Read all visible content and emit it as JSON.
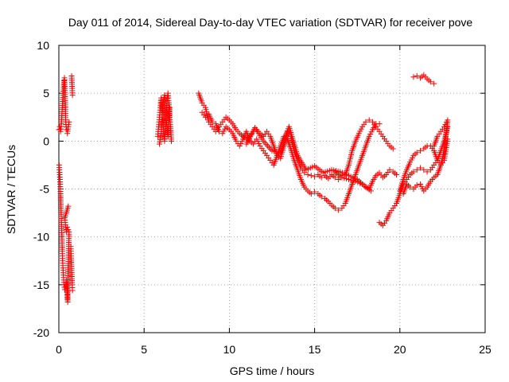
{
  "chart_data": {
    "type": "scatter",
    "title": "Day 011 of 2014, Sidereal Day-to-day VTEC variation (SDTVAR) for receiver pove",
    "xlabel": "GPS time / hours",
    "ylabel": "SDTVAR / TECUs",
    "xlim": [
      0,
      25
    ],
    "ylim": [
      -20,
      10
    ],
    "xticks": [
      0,
      5,
      10,
      15,
      20,
      25
    ],
    "yticks": [
      -20,
      -15,
      -10,
      -5,
      0,
      5,
      10
    ],
    "grid": true,
    "marker": "+",
    "color": "#ff0000",
    "series": [
      {
        "name": "SDTVAR",
        "segments": [
          [
            [
              0.0,
              1.2
            ],
            [
              0.05,
              1.5
            ],
            [
              0.1,
              1.0
            ],
            [
              0.15,
              1.8
            ],
            [
              0.2,
              3.5
            ],
            [
              0.25,
              5.0
            ],
            [
              0.3,
              6.3
            ],
            [
              0.33,
              6.6
            ],
            [
              0.35,
              5.5
            ],
            [
              0.38,
              4.0
            ],
            [
              0.4,
              2.0
            ],
            [
              0.45,
              1.2
            ],
            [
              0.5,
              0.8
            ],
            [
              0.55,
              1.5
            ],
            [
              0.6,
              2.0
            ]
          ],
          [
            [
              0.02,
              -2.5
            ],
            [
              0.05,
              -3.5
            ],
            [
              0.08,
              -4.5
            ],
            [
              0.1,
              -5.5
            ],
            [
              0.12,
              -7.0
            ],
            [
              0.15,
              -8.5
            ],
            [
              0.18,
              -10.0
            ],
            [
              0.2,
              -11.5
            ],
            [
              0.22,
              -12.5
            ],
            [
              0.25,
              -13.5
            ],
            [
              0.28,
              -14.5
            ],
            [
              0.3,
              -15.0
            ],
            [
              0.35,
              -15.5
            ],
            [
              0.4,
              -15.0
            ],
            [
              0.45,
              -14.5
            ],
            [
              0.5,
              -16.5
            ],
            [
              0.52,
              -16.8
            ],
            [
              0.55,
              -13.0
            ],
            [
              0.58,
              -11.0
            ],
            [
              0.6,
              -9.5
            ],
            [
              0.5,
              -9.0
            ],
            [
              0.45,
              -9.5
            ],
            [
              0.4,
              -9.0
            ],
            [
              0.35,
              -8.0
            ],
            [
              0.55,
              -6.8
            ]
          ],
          [
            [
              0.75,
              6.8
            ],
            [
              0.78,
              5.5
            ],
            [
              0.8,
              4.8
            ]
          ],
          [
            [
              0.7,
              -11.0
            ],
            [
              0.72,
              -12.0
            ],
            [
              0.75,
              -13.5
            ],
            [
              0.78,
              -15.0
            ],
            [
              0.8,
              -15.6
            ]
          ],
          [
            [
              5.8,
              0.5
            ],
            [
              5.85,
              1.5
            ],
            [
              5.9,
              2.5
            ],
            [
              5.95,
              3.5
            ],
            [
              6.0,
              4.5
            ],
            [
              6.05,
              3.0
            ],
            [
              6.1,
              2.0
            ],
            [
              6.15,
              1.0
            ],
            [
              6.2,
              0.0
            ],
            [
              6.25,
              1.5
            ],
            [
              6.3,
              3.0
            ],
            [
              6.35,
              4.2
            ],
            [
              6.4,
              5.0
            ],
            [
              6.45,
              4.0
            ],
            [
              6.5,
              2.5
            ],
            [
              6.55,
              1.5
            ],
            [
              6.6,
              0.0
            ]
          ],
          [
            [
              5.9,
              -0.3
            ],
            [
              6.0,
              0.8
            ],
            [
              6.1,
              3.8
            ],
            [
              6.2,
              4.8
            ],
            [
              6.3,
              2.2
            ],
            [
              6.4,
              0.5
            ],
            [
              6.5,
              3.5
            ]
          ],
          [
            [
              8.2,
              5.0
            ],
            [
              8.4,
              4.0
            ],
            [
              8.6,
              3.5
            ],
            [
              8.8,
              2.0
            ],
            [
              9.0,
              1.5
            ],
            [
              9.2,
              1.0
            ],
            [
              9.4,
              1.5
            ],
            [
              9.6,
              2.0
            ],
            [
              9.8,
              2.5
            ],
            [
              10.0,
              2.2
            ],
            [
              10.2,
              1.8
            ],
            [
              10.4,
              1.2
            ],
            [
              10.6,
              0.8
            ],
            [
              10.8,
              0.5
            ],
            [
              11.0,
              0.2
            ],
            [
              11.2,
              0.5
            ],
            [
              11.4,
              1.0
            ],
            [
              11.6,
              1.2
            ],
            [
              11.8,
              0.8
            ],
            [
              12.0,
              0.5
            ],
            [
              12.2,
              1.0
            ],
            [
              12.4,
              0.5
            ],
            [
              12.6,
              -0.5
            ],
            [
              12.8,
              -1.5
            ],
            [
              13.0,
              -1.8
            ],
            [
              13.2,
              -0.5
            ],
            [
              13.4,
              1.0
            ],
            [
              13.6,
              0.5
            ],
            [
              13.8,
              -1.0
            ],
            [
              14.0,
              -2.0
            ],
            [
              14.2,
              -2.8
            ],
            [
              14.4,
              -3.3
            ],
            [
              14.6,
              -3.5
            ],
            [
              14.8,
              -3.6
            ],
            [
              15.0,
              -3.7
            ],
            [
              15.2,
              -3.5
            ],
            [
              15.4,
              -3.8
            ],
            [
              15.6,
              -3.6
            ],
            [
              15.8,
              -3.9
            ],
            [
              16.0,
              -3.5
            ],
            [
              16.2,
              -3.8
            ],
            [
              16.4,
              -4.0
            ],
            [
              16.6,
              -3.6
            ],
            [
              16.8,
              -3.5
            ],
            [
              17.0,
              -2.5
            ],
            [
              17.2,
              -1.0
            ],
            [
              17.4,
              0.0
            ],
            [
              17.6,
              0.8
            ],
            [
              17.8,
              1.5
            ],
            [
              18.0,
              2.0
            ],
            [
              18.2,
              2.2
            ],
            [
              18.4,
              2.0
            ],
            [
              18.6,
              1.5
            ],
            [
              18.8,
              1.0
            ],
            [
              19.0,
              0.5
            ],
            [
              19.2,
              0.0
            ],
            [
              19.4,
              -0.5
            ],
            [
              19.6,
              -0.8
            ]
          ],
          [
            [
              8.4,
              3.0
            ],
            [
              8.6,
              2.5
            ],
            [
              8.8,
              2.8
            ],
            [
              9.0,
              2.0
            ],
            [
              9.2,
              1.8
            ],
            [
              9.4,
              1.0
            ],
            [
              9.6,
              0.8
            ],
            [
              9.8,
              1.5
            ],
            [
              10.0,
              1.2
            ],
            [
              10.2,
              0.8
            ],
            [
              10.4,
              0.0
            ],
            [
              10.6,
              -0.5
            ],
            [
              10.8,
              0.2
            ],
            [
              11.0,
              1.0
            ],
            [
              11.2,
              0.0
            ],
            [
              11.4,
              -0.3
            ],
            [
              11.6,
              0.2
            ],
            [
              11.8,
              -0.5
            ],
            [
              12.0,
              -1.0
            ],
            [
              12.2,
              -1.5
            ],
            [
              12.4,
              -2.0
            ],
            [
              12.6,
              -2.5
            ],
            [
              12.8,
              -1.5
            ],
            [
              13.0,
              -0.5
            ],
            [
              13.2,
              0.5
            ],
            [
              13.4,
              0.2
            ],
            [
              13.6,
              -0.8
            ],
            [
              13.8,
              -2.0
            ],
            [
              14.0,
              -3.0
            ],
            [
              14.2,
              -4.0
            ],
            [
              14.4,
              -4.8
            ],
            [
              14.6,
              -5.2
            ],
            [
              14.8,
              -5.5
            ],
            [
              15.0,
              -5.3
            ],
            [
              15.2,
              -5.5
            ],
            [
              15.4,
              -5.8
            ],
            [
              15.6,
              -6.0
            ],
            [
              15.8,
              -6.3
            ],
            [
              16.0,
              -6.7
            ],
            [
              16.2,
              -7.0
            ],
            [
              16.4,
              -7.2
            ],
            [
              16.6,
              -7.0
            ],
            [
              16.8,
              -6.5
            ],
            [
              17.0,
              -5.5
            ],
            [
              17.2,
              -4.5
            ],
            [
              17.4,
              -3.5
            ],
            [
              17.6,
              -2.5
            ],
            [
              17.8,
              -1.5
            ],
            [
              18.0,
              -0.5
            ],
            [
              18.2,
              0.5
            ],
            [
              18.4,
              1.2
            ],
            [
              18.6,
              1.8
            ],
            [
              18.8,
              1.8
            ]
          ],
          [
            [
              11.0,
              -0.3
            ],
            [
              11.5,
              1.4
            ],
            [
              12.0,
              0.0
            ],
            [
              12.5,
              -1.0
            ],
            [
              13.0,
              -1.2
            ],
            [
              13.5,
              1.5
            ],
            [
              14.0,
              -1.5
            ],
            [
              14.5,
              -3.0
            ],
            [
              15.0,
              -2.6
            ],
            [
              15.5,
              -3.3
            ],
            [
              16.0,
              -3.0
            ],
            [
              16.5,
              -3.2
            ],
            [
              17.0,
              -3.6
            ],
            [
              17.5,
              -4.0
            ],
            [
              18.0,
              -4.8
            ],
            [
              18.3,
              -5.2
            ]
          ],
          [
            [
              16.2,
              -3.2
            ],
            [
              16.6,
              -3.8
            ],
            [
              17.0,
              -4.0
            ],
            [
              17.4,
              -4.2
            ],
            [
              17.8,
              -4.5
            ],
            [
              18.2,
              -5.0
            ],
            [
              18.4,
              -4.2
            ],
            [
              18.6,
              -3.6
            ],
            [
              18.8,
              -3.3
            ],
            [
              19.0,
              -3.8
            ],
            [
              19.2,
              -3.5
            ],
            [
              19.4,
              -3.0
            ],
            [
              19.6,
              -3.2
            ],
            [
              19.8,
              -3.5
            ]
          ],
          [
            [
              18.8,
              -8.5
            ],
            [
              19.0,
              -8.8
            ],
            [
              19.2,
              -8.3
            ],
            [
              19.4,
              -7.5
            ],
            [
              19.6,
              -7.0
            ],
            [
              19.8,
              -6.5
            ],
            [
              20.0,
              -5.5
            ],
            [
              20.2,
              -4.5
            ],
            [
              20.4,
              -4.0
            ],
            [
              20.6,
              -3.5
            ],
            [
              20.8,
              -3.2
            ],
            [
              21.0,
              -3.0
            ],
            [
              21.2,
              -2.8
            ],
            [
              21.4,
              -3.0
            ],
            [
              21.6,
              -3.2
            ],
            [
              21.8,
              -3.0
            ],
            [
              22.0,
              -2.5
            ],
            [
              22.2,
              -2.0
            ],
            [
              22.4,
              -1.0
            ],
            [
              22.6,
              0.0
            ],
            [
              22.8,
              1.5
            ]
          ],
          [
            [
              20.0,
              -5.2
            ],
            [
              20.2,
              -4.0
            ],
            [
              20.4,
              -3.0
            ],
            [
              20.6,
              -2.2
            ],
            [
              20.8,
              -1.5
            ],
            [
              21.0,
              -1.2
            ],
            [
              21.2,
              -1.0
            ],
            [
              21.4,
              -0.8
            ],
            [
              21.6,
              -0.5
            ],
            [
              21.8,
              -0.5
            ],
            [
              22.0,
              -1.0
            ],
            [
              22.2,
              -2.0
            ],
            [
              22.4,
              -2.5
            ],
            [
              22.6,
              -2.0
            ],
            [
              22.8,
              0.2
            ]
          ],
          [
            [
              20.2,
              -5.5
            ],
            [
              20.4,
              -4.5
            ],
            [
              20.6,
              -4.8
            ],
            [
              20.8,
              -5.0
            ],
            [
              21.0,
              -4.6
            ],
            [
              21.2,
              -4.5
            ],
            [
              21.4,
              -5.2
            ],
            [
              21.6,
              -4.8
            ],
            [
              21.8,
              -4.2
            ],
            [
              22.0,
              -3.8
            ],
            [
              22.2,
              -3.5
            ],
            [
              22.4,
              -2.5
            ],
            [
              22.6,
              -1.0
            ],
            [
              22.8,
              2.0
            ]
          ],
          [
            [
              22.0,
              -0.5
            ],
            [
              22.2,
              0.5
            ],
            [
              22.4,
              1.0
            ],
            [
              22.6,
              1.5
            ],
            [
              22.8,
              2.2
            ]
          ],
          [
            [
              20.8,
              6.7
            ],
            [
              21.0,
              6.8
            ],
            [
              21.2,
              6.6
            ],
            [
              21.4,
              6.9
            ],
            [
              21.6,
              6.5
            ],
            [
              21.8,
              6.2
            ],
            [
              22.0,
              6.0
            ]
          ]
        ]
      }
    ]
  }
}
